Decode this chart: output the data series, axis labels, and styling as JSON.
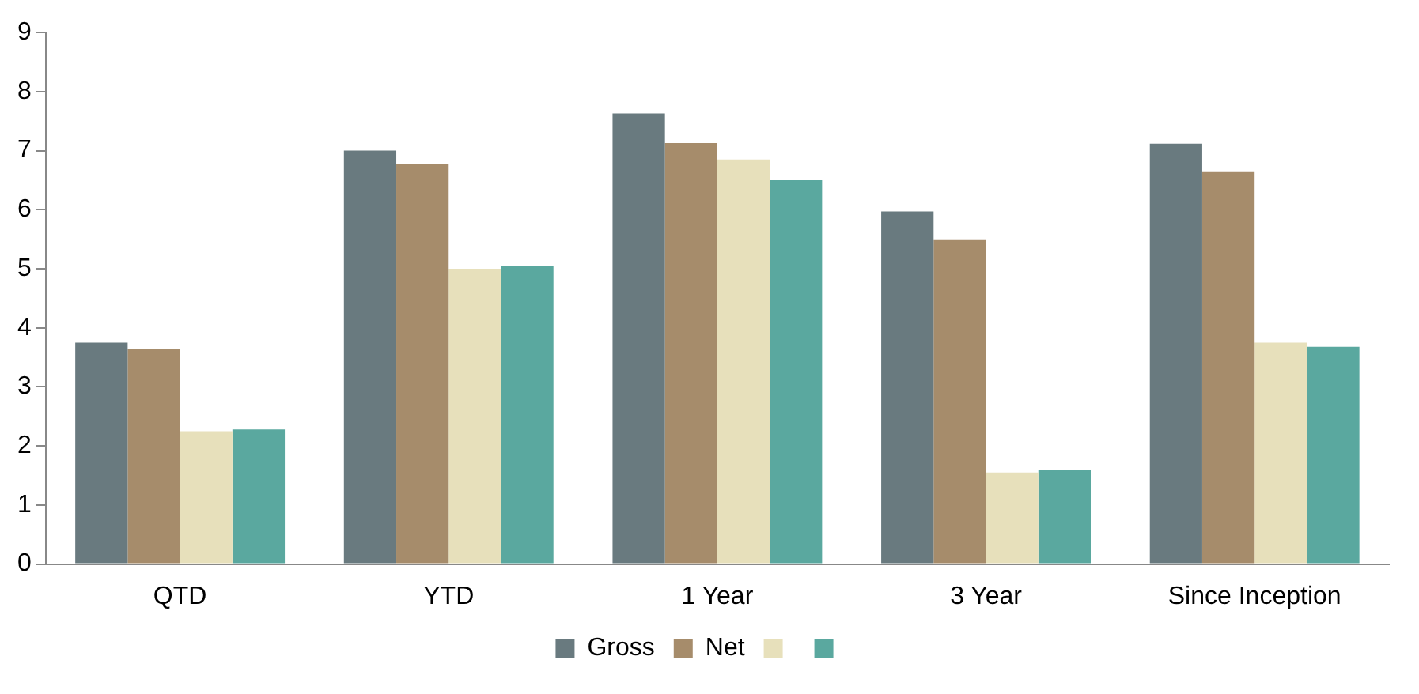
{
  "chart_data": {
    "type": "bar",
    "categories": [
      "QTD",
      "YTD",
      "1 Year",
      "3 Year",
      "Since Inception"
    ],
    "series": [
      {
        "name": "Gross",
        "color": "#697a7f",
        "values": [
          3.75,
          7.0,
          7.63,
          5.97,
          7.12
        ]
      },
      {
        "name": "Net",
        "color": "#a68c6b",
        "values": [
          3.65,
          6.77,
          7.13,
          5.5,
          6.65
        ]
      },
      {
        "color": "#e7e0bb",
        "values": [
          2.25,
          5.0,
          6.85,
          1.55,
          3.75
        ]
      },
      {
        "color": "#5aa89f",
        "values": [
          2.28,
          5.05,
          6.5,
          1.6,
          3.68
        ]
      }
    ],
    "ylim": [
      0,
      9
    ],
    "yticks": [
      0,
      1,
      2,
      3,
      4,
      5,
      6,
      7,
      8,
      9
    ],
    "grid": false,
    "legend": "bottom"
  }
}
